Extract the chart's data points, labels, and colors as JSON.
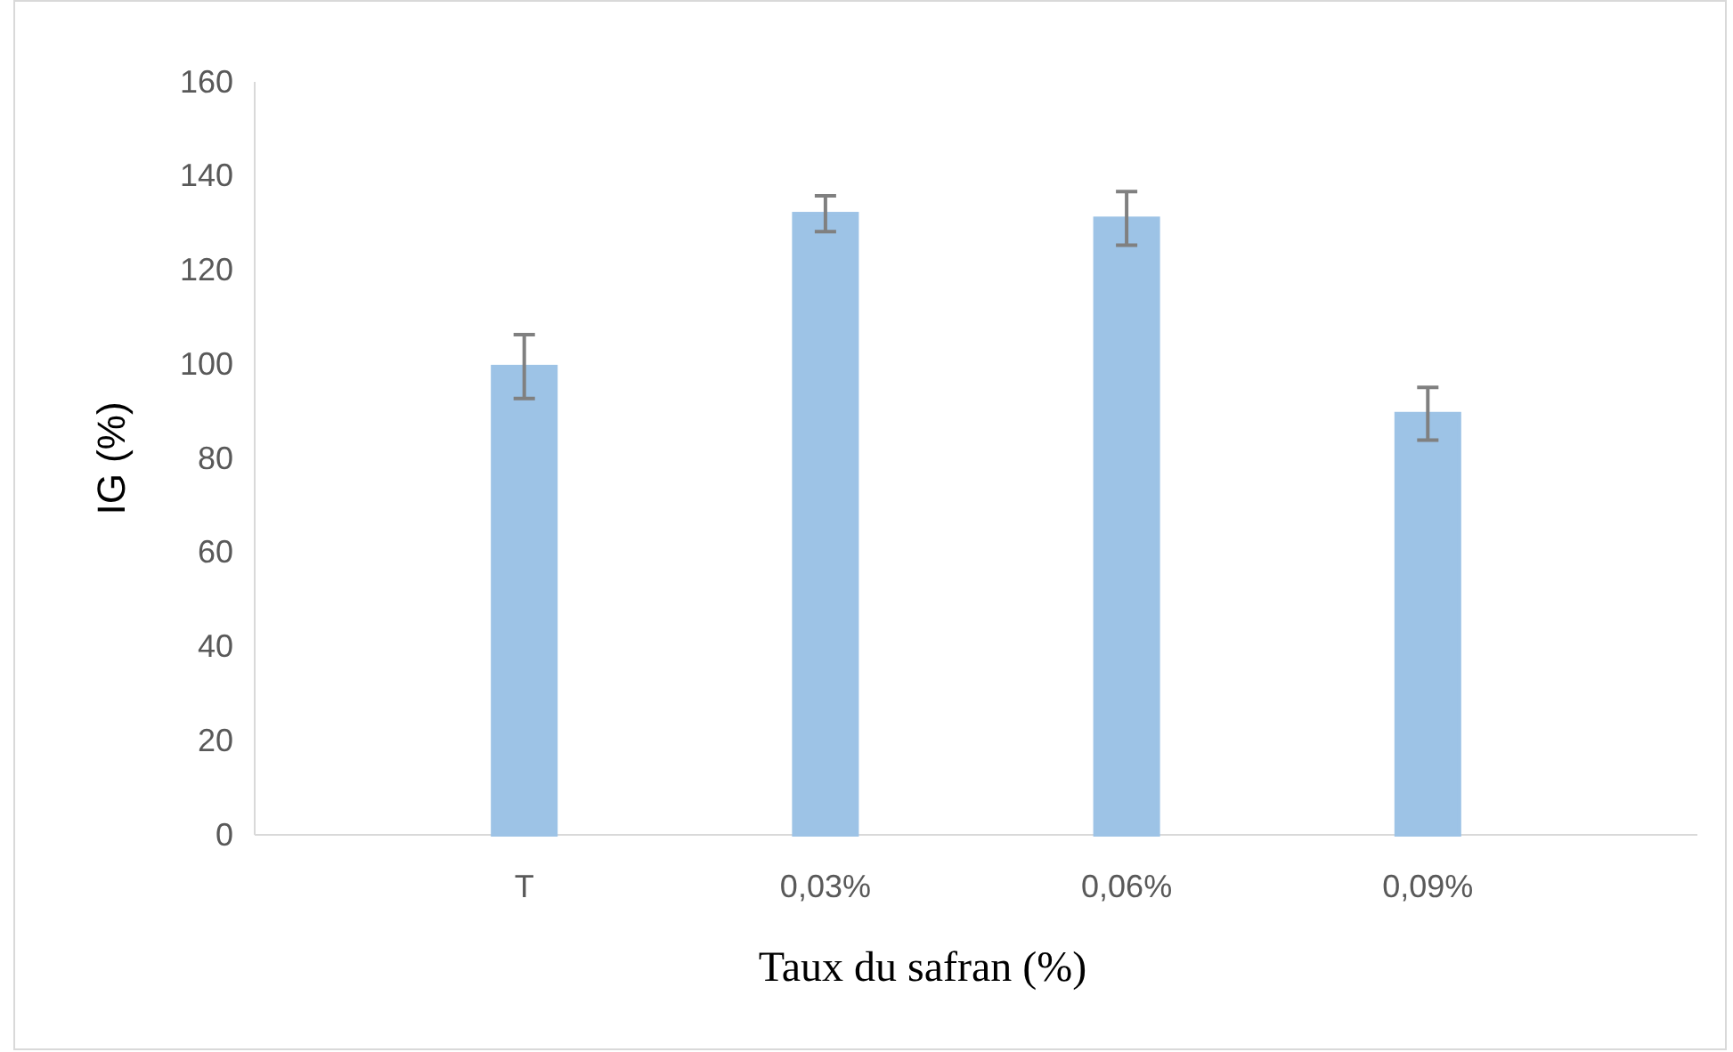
{
  "chart_data": {
    "type": "bar",
    "xlabel": "Taux du safran (%)",
    "ylabel": "IG (%)",
    "categories": [
      "T",
      "0,03%",
      "0,06%",
      "0,09%"
    ],
    "values": [
      99.5,
      132,
      131,
      89.5
    ],
    "errors": [
      6.8,
      3.8,
      5.7,
      5.6
    ],
    "color": "#9dc3e6",
    "ylim": [
      0,
      160
    ],
    "yticks": [
      0,
      20,
      40,
      60,
      80,
      100,
      120,
      140,
      160
    ],
    "grid": false
  }
}
